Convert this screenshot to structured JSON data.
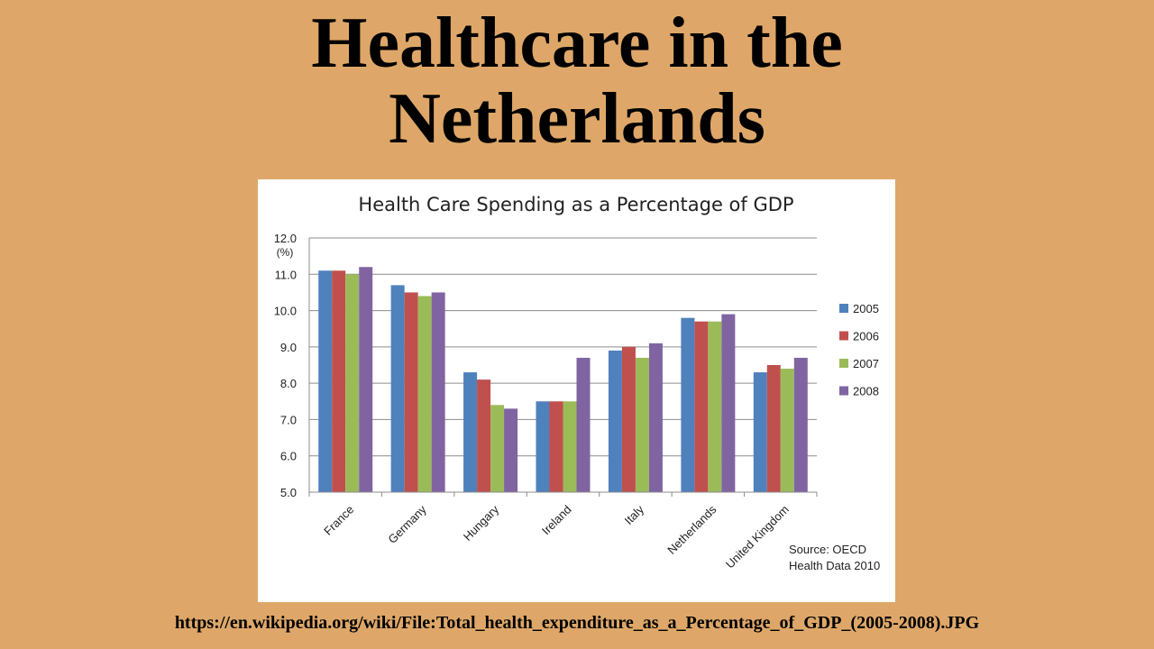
{
  "slide": {
    "title_line1": "Healthcare in the",
    "title_line2": "Netherlands",
    "source_url": "https://en.wikipedia.org/wiki/File:Total_health_expenditure_as_a_Percentage_of_GDP_(2005-2008).JPG"
  },
  "chart_data": {
    "type": "bar",
    "title": "Health Care Spending as a Percentage of GDP",
    "ylabel": "(%)",
    "xlabel": "",
    "ylim": [
      5.0,
      12.0
    ],
    "yticks": [
      "5.0",
      "6.0",
      "7.0",
      "8.0",
      "9.0",
      "10.0",
      "11.0",
      "12.0"
    ],
    "categories": [
      "France",
      "Germany",
      "Hungary",
      "Ireland",
      "Italy",
      "Netherlands",
      "United Kingdom"
    ],
    "series": [
      {
        "name": "2005",
        "color": "#4f81bd",
        "values": [
          11.1,
          10.7,
          8.3,
          7.5,
          8.9,
          9.8,
          8.3
        ]
      },
      {
        "name": "2006",
        "color": "#c0504d",
        "values": [
          11.1,
          10.5,
          8.1,
          7.5,
          9.0,
          9.7,
          8.5
        ]
      },
      {
        "name": "2007",
        "color": "#9bbb59",
        "values": [
          11.0,
          10.4,
          7.4,
          7.5,
          8.7,
          9.7,
          8.4
        ]
      },
      {
        "name": "2008",
        "color": "#8064a2",
        "values": [
          11.2,
          10.5,
          7.3,
          8.7,
          9.1,
          9.9,
          8.7
        ]
      }
    ],
    "grid": true,
    "legend_position": "right",
    "source_note": [
      "Source: OECD",
      "Health Data 2010"
    ]
  }
}
